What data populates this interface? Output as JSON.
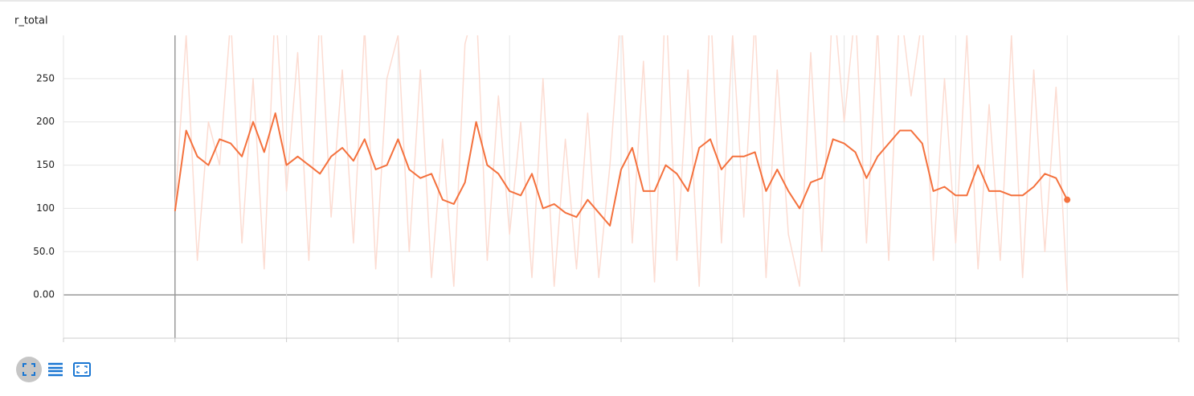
{
  "chart_data": {
    "type": "line",
    "title": "r_total",
    "x": [
      0,
      0.1,
      0.2,
      0.3,
      0.4,
      0.5,
      0.6,
      0.7,
      0.8,
      0.9,
      1,
      1.1,
      1.2,
      1.3,
      1.4,
      1.5,
      1.6,
      1.7,
      1.8,
      1.9,
      2,
      2.1,
      2.2,
      2.3,
      2.4,
      2.5,
      2.6,
      2.7,
      2.8,
      2.9,
      3,
      3.1,
      3.2,
      3.3,
      3.4,
      3.5,
      3.6,
      3.7,
      3.8,
      3.9,
      4,
      4.1,
      4.2,
      4.3,
      4.4,
      4.5,
      4.6,
      4.7,
      4.8,
      4.9,
      5,
      5.1,
      5.2,
      5.3,
      5.4,
      5.5,
      5.6,
      5.7,
      5.8,
      5.9,
      6,
      6.1,
      6.2,
      6.3,
      6.4,
      6.5,
      6.6,
      6.7,
      6.8,
      6.9,
      7,
      7.1,
      7.2,
      7.3,
      7.4,
      7.5,
      7.6,
      7.7,
      7.8,
      7.9,
      8
    ],
    "series": [
      {
        "color": "#fcdcd2",
        "values": [
          100,
          300,
          40,
          200,
          150,
          320,
          60,
          250,
          30,
          340,
          120,
          280,
          40,
          330,
          90,
          260,
          60,
          310,
          30,
          250,
          300,
          50,
          260,
          20,
          180,
          10,
          290,
          340,
          40,
          230,
          70,
          200,
          20,
          250,
          10,
          180,
          30,
          210,
          20,
          150,
          330,
          60,
          270,
          15,
          350,
          40,
          260,
          10,
          340,
          60,
          300,
          90,
          320,
          20,
          260,
          70,
          10,
          280,
          50,
          350,
          200,
          330,
          60,
          310,
          40,
          340,
          230,
          320,
          40,
          250,
          60,
          300,
          30,
          220,
          40,
          300,
          20,
          260,
          50,
          240,
          5
        ]
      },
      {
        "color": "#f4713d",
        "values": [
          97,
          190,
          160,
          150,
          180,
          175,
          160,
          200,
          165,
          210,
          150,
          160,
          150,
          140,
          160,
          170,
          155,
          180,
          145,
          150,
          180,
          145,
          135,
          140,
          110,
          105,
          130,
          200,
          150,
          140,
          120,
          115,
          140,
          100,
          105,
          95,
          90,
          110,
          95,
          80,
          145,
          170,
          120,
          120,
          150,
          140,
          120,
          170,
          180,
          145,
          160,
          160,
          165,
          120,
          145,
          120,
          100,
          130,
          135,
          180,
          175,
          165,
          135,
          160,
          175,
          190,
          190,
          175,
          120,
          125,
          115,
          115,
          150,
          120,
          120,
          115,
          115,
          125,
          140,
          135,
          110
        ]
      }
    ],
    "xlim": [
      -1,
      9
    ],
    "xticks": [
      -1,
      0,
      1,
      2,
      3,
      4,
      5,
      6,
      7,
      8,
      9
    ],
    "ylim": [
      -50,
      300
    ],
    "yticks": [
      {
        "value": 0,
        "label": "0.00"
      },
      {
        "value": 50,
        "label": "50.0"
      },
      100,
      150,
      200,
      250
    ],
    "grid": true
  }
}
